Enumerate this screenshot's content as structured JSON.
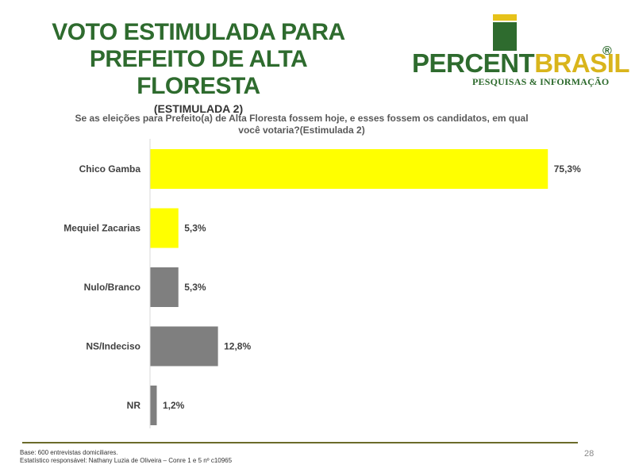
{
  "title": {
    "line1": "VOTO ESTIMULADA PARA",
    "line2": "PREFEITO DE ALTA FLORESTA",
    "subtitle": "(ESTIMULADA 2)"
  },
  "logo": {
    "text_part1": "PERCENT",
    "text_part2": "BRASIL",
    "registered": "®",
    "tagline": "PESQUISAS & INFORMAÇÃO"
  },
  "question": {
    "line1": "Se as eleições para Prefeito(a) de Alta Floresta fossem hoje, e esses fossem os candidatos, em qual",
    "line2": "você votaria?(Estimulada 2)"
  },
  "chart_data": {
    "type": "bar",
    "orientation": "horizontal",
    "categories": [
      "Chico Gamba",
      "Mequiel Zacarias",
      "Nulo/Branco",
      "NS/Indeciso",
      "NR"
    ],
    "values": [
      75.3,
      5.3,
      5.3,
      12.8,
      1.2
    ],
    "labels": [
      "75,3%",
      "5,3%",
      "5,3%",
      "12,8%",
      "1,2%"
    ],
    "colors": [
      "#ffff00",
      "#ffff00",
      "#7f7f7f",
      "#7f7f7f",
      "#7f7f7f"
    ],
    "xlim": [
      0,
      80
    ],
    "grid": false,
    "legend": "none"
  },
  "footer": {
    "base": "Base: 600 entrevistas domiciliares.",
    "statistician": "Estatístico responsável: Nathany Luzia de Oliveira – Conre 1 e 5 nº c10965",
    "page": "28"
  }
}
